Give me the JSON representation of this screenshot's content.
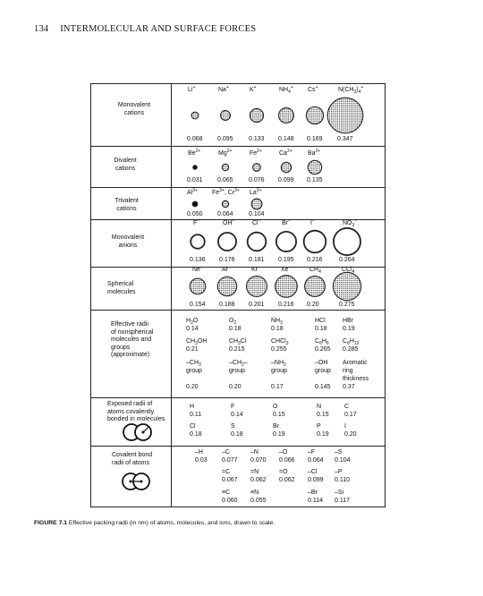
{
  "header": {
    "page_number": "134",
    "title": "INTERMOLECULAR AND SURFACE FORCES"
  },
  "sections": {
    "monovalent_cations": {
      "label": "Monovalent\ncations",
      "names": [
        "Li<sup>+</sup>",
        "Na<sup>+</sup>",
        "K<sup>+</sup>",
        "NH<sub>4</sub><sup>+</sup>",
        "Cs<sup>+</sup>",
        "N(CH<sub>3</sub>)<sub>4</sub><sup>+</sup>"
      ],
      "radii": [
        "0.068",
        "0.095",
        "0.133",
        "0.148",
        "0.169",
        "0.347"
      ]
    },
    "divalent_cations": {
      "label": "Divalent\ncations",
      "names": [
        "Be<sup>2+</sup>",
        "Mg<sup>2+</sup>",
        "Fe<sup>2+</sup>",
        "Ca<sup>2+</sup>",
        "Ba<sup>2+</sup>"
      ],
      "radii": [
        "0.031",
        "0.065",
        "0.076",
        "0.099",
        "0.135"
      ]
    },
    "trivalent_cations": {
      "label": "Trivalent\ncations",
      "names": [
        "Al<sup>3+</sup>",
        "Fe<sup>3+</sup>, Cr<sup>3+</sup>",
        "La<sup>3+</sup>"
      ],
      "radii": [
        "0.050",
        "0.064",
        "0.104"
      ]
    },
    "monovalent_anions": {
      "label": "Monovalent\nanions",
      "names": [
        "F<sup>−</sup>",
        "OH<sup>−</sup>",
        "Cl<sup>−</sup>",
        "Br<sup>−</sup>",
        "I<sup>−</sup>",
        "NO<sub>3</sub><sup>−</sup>"
      ],
      "radii": [
        "0.136",
        "0.176",
        "0.181",
        "0.195",
        "0.216",
        "0.264"
      ]
    },
    "spherical_molecules": {
      "label": "Spherical\nmolecules",
      "names": [
        "Ne",
        "Ar",
        "Kr",
        "Xe",
        "CH<sub>4</sub>",
        "CCl<sub>4</sub>"
      ],
      "radii": [
        "0.154",
        "0.188",
        "0.201",
        "0.216",
        "0.20",
        "0.275"
      ]
    },
    "effective_radii": {
      "label": "Effective radii\nof nonspherical\nmolecules and\ngroups\n(approximate)",
      "entries": [
        "H<sub>2</sub>O",
        "0.14",
        "O<sub>2</sub>",
        "0.18",
        "NH<sub>3</sub>",
        "0.18",
        "HCl",
        "0.18",
        "HBr",
        "0.19",
        "CH<sub>3</sub>OH",
        "0.21",
        "CH<sub>3</sub>Cl",
        "0.215",
        "CHCl<sub>3</sub>",
        "0.255",
        "C<sub>6</sub>H<sub>6</sub>",
        "0.265",
        "C<sub>6</sub>H<sub>12</sub>",
        "0.285",
        "–CH<sub>3</sub>",
        "group",
        "–CH<sub>2</sub>–",
        "group",
        "–NH<sub>2</sub>",
        "group",
        "–OH",
        "group",
        "Aromatic",
        "ring",
        "thickness",
        "0.20",
        "0.20",
        "0.17",
        "0.145",
        "0.37"
      ]
    },
    "exposed_radii": {
      "label": "Exposed radii of\natoms covalently\nbonded in molecules",
      "entries": [
        "H",
        "0.11",
        "F",
        "0.14",
        "O",
        "0.15",
        "N",
        "0.15",
        "C",
        "0.17",
        "Cl",
        "0.18",
        "S",
        "0.18",
        "Br",
        "0.19",
        "P",
        "0.19",
        "I",
        "0.20"
      ]
    },
    "covalent_radii": {
      "label": "Covalent bond\nradii of atoms",
      "entries": [
        "–H",
        "0.03",
        "–C",
        "0.077",
        "–N",
        "0.070",
        "–O",
        "0.066",
        "–F",
        "0.064",
        "–S",
        "0.104",
        "=C",
        "0.067",
        "=N",
        "0.062",
        "=O",
        "0.062",
        "–Cl",
        "0.099",
        "–P",
        "0.110",
        "≡C",
        "0.060",
        "≡N",
        "0.055",
        "–Br",
        "0.114",
        "–Si",
        "0.117"
      ]
    }
  },
  "caption": {
    "figure_label": "FIGURE 7.1",
    "text": " Effective packing radii (in nm) of atoms, molecules, and ions, drawn to scale."
  },
  "colors": {
    "line": "#222222",
    "dot_fill": "#bdbdbd"
  }
}
